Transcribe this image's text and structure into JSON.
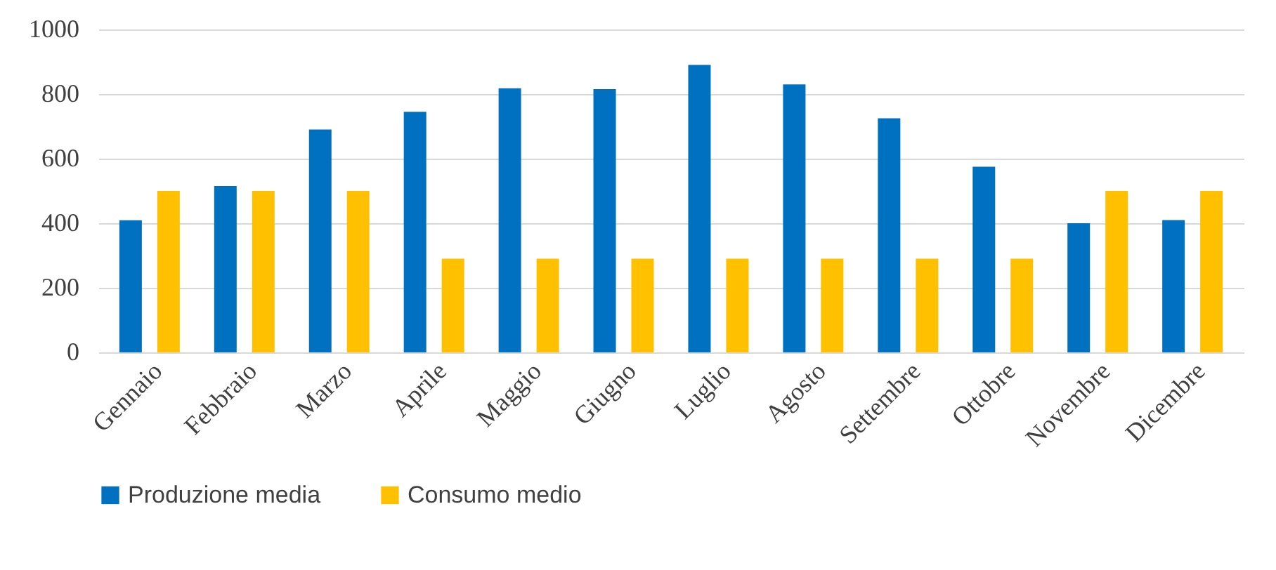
{
  "chart_data": {
    "type": "bar",
    "categories": [
      "Gennaio",
      "Febbraio",
      "Marzo",
      "Aprile",
      "Maggio",
      "Giugno",
      "Luglio",
      "Agosto",
      "Settembre",
      "Ottobre",
      "Novembre",
      "Dicembre"
    ],
    "series": [
      {
        "name": "Produzione media",
        "color": "#0070c0",
        "values": [
          409,
          515,
          690,
          745,
          818,
          815,
          890,
          830,
          725,
          575,
          400,
          410
        ]
      },
      {
        "name": "Consumo medio",
        "color": "#ffc000",
        "values": [
          500,
          500,
          500,
          290,
          290,
          290,
          290,
          290,
          290,
          290,
          500,
          500
        ]
      }
    ],
    "ylim": [
      0,
      1000
    ],
    "yticks": [
      0,
      200,
      400,
      600,
      800,
      1000
    ],
    "grid": "y",
    "legend": "bottom"
  }
}
